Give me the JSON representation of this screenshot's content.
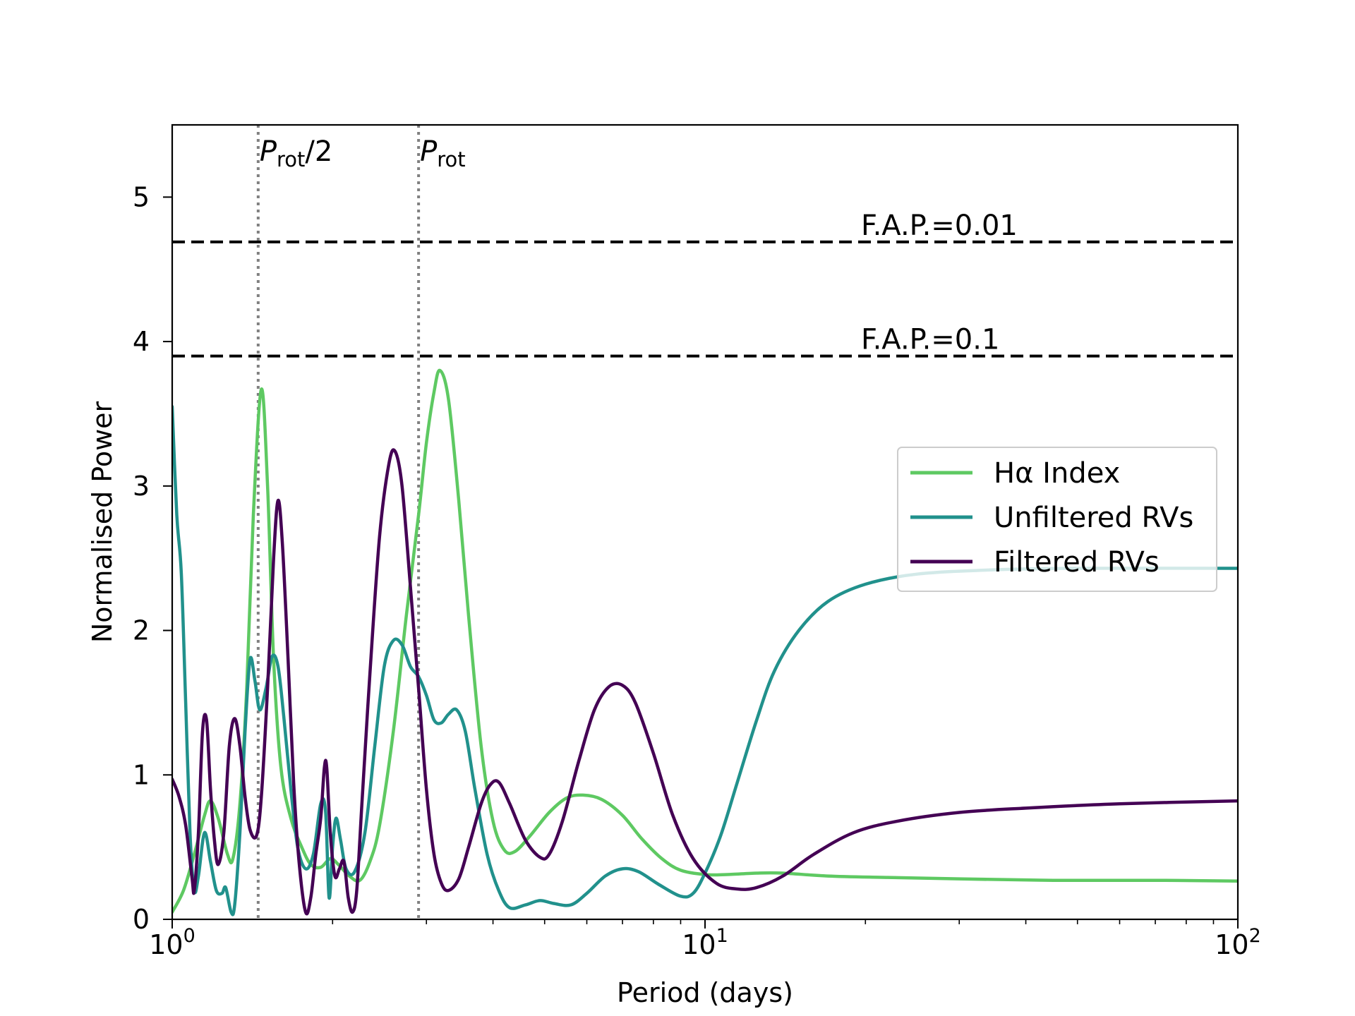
{
  "chart_data": {
    "type": "line",
    "xlabel": "Period (days)",
    "ylabel": "Normalised Power",
    "x_scale": "log",
    "xlim": [
      1,
      100
    ],
    "ylim": [
      0,
      5.5
    ],
    "x_ticks": [
      {
        "value": 1,
        "base": "10",
        "exp": "0"
      },
      {
        "value": 10,
        "base": "10",
        "exp": "1"
      },
      {
        "value": 100,
        "base": "10",
        "exp": "2"
      }
    ],
    "y_ticks": [
      {
        "value": 0,
        "label": "0"
      },
      {
        "value": 1,
        "label": "1"
      },
      {
        "value": 2,
        "label": "2"
      },
      {
        "value": 3,
        "label": "3"
      },
      {
        "value": 4,
        "label": "4"
      },
      {
        "value": 5,
        "label": "5"
      }
    ],
    "grid": false,
    "legend_position": "center-right",
    "fap_lines": [
      {
        "label": "F.A.P.=0.01",
        "y": 4.69
      },
      {
        "label": "F.A.P.=0.1",
        "y": 3.9
      }
    ],
    "vlines": [
      {
        "x": 1.45,
        "label_main": "P",
        "label_sub": "rot",
        "label_suffix": "/2"
      },
      {
        "x": 2.9,
        "label_main": "P",
        "label_sub": "rot",
        "label_suffix": ""
      }
    ],
    "series": [
      {
        "name": "Hα Index",
        "color": "#5ec962",
        "points": [
          [
            1.0,
            0.05
          ],
          [
            1.05,
            0.2
          ],
          [
            1.1,
            0.45
          ],
          [
            1.15,
            0.72
          ],
          [
            1.18,
            0.82
          ],
          [
            1.22,
            0.7
          ],
          [
            1.27,
            0.45
          ],
          [
            1.3,
            0.42
          ],
          [
            1.34,
            0.8
          ],
          [
            1.38,
            1.6
          ],
          [
            1.42,
            2.8
          ],
          [
            1.47,
            3.67
          ],
          [
            1.51,
            3.0
          ],
          [
            1.55,
            1.8
          ],
          [
            1.6,
            1.05
          ],
          [
            1.67,
            0.7
          ],
          [
            1.75,
            0.5
          ],
          [
            1.82,
            0.38
          ],
          [
            1.9,
            0.36
          ],
          [
            1.98,
            0.42
          ],
          [
            2.05,
            0.38
          ],
          [
            2.15,
            0.3
          ],
          [
            2.25,
            0.27
          ],
          [
            2.35,
            0.4
          ],
          [
            2.45,
            0.65
          ],
          [
            2.6,
            1.3
          ],
          [
            2.75,
            2.1
          ],
          [
            2.9,
            2.8
          ],
          [
            3.0,
            3.3
          ],
          [
            3.1,
            3.65
          ],
          [
            3.18,
            3.8
          ],
          [
            3.3,
            3.6
          ],
          [
            3.45,
            2.9
          ],
          [
            3.6,
            2.1
          ],
          [
            3.8,
            1.2
          ],
          [
            4.0,
            0.68
          ],
          [
            4.2,
            0.48
          ],
          [
            4.4,
            0.47
          ],
          [
            4.7,
            0.58
          ],
          [
            5.1,
            0.74
          ],
          [
            5.5,
            0.84
          ],
          [
            5.9,
            0.86
          ],
          [
            6.4,
            0.83
          ],
          [
            7.0,
            0.72
          ],
          [
            7.6,
            0.56
          ],
          [
            8.3,
            0.42
          ],
          [
            9.0,
            0.34
          ],
          [
            10.0,
            0.31
          ],
          [
            11.0,
            0.31
          ],
          [
            12.5,
            0.32
          ],
          [
            14.0,
            0.32
          ],
          [
            17.0,
            0.3
          ],
          [
            22.0,
            0.29
          ],
          [
            30.0,
            0.28
          ],
          [
            45.0,
            0.27
          ],
          [
            70.0,
            0.27
          ],
          [
            100.0,
            0.265
          ]
        ]
      },
      {
        "name": "Unfiltered RVs",
        "color": "#21918c",
        "points": [
          [
            1.0,
            3.55
          ],
          [
            1.02,
            2.8
          ],
          [
            1.04,
            2.4
          ],
          [
            1.06,
            1.5
          ],
          [
            1.08,
            0.6
          ],
          [
            1.1,
            0.2
          ],
          [
            1.12,
            0.3
          ],
          [
            1.15,
            0.6
          ],
          [
            1.18,
            0.4
          ],
          [
            1.21,
            0.2
          ],
          [
            1.24,
            0.18
          ],
          [
            1.26,
            0.22
          ],
          [
            1.29,
            0.05
          ],
          [
            1.31,
            0.1
          ],
          [
            1.34,
            0.6
          ],
          [
            1.37,
            1.3
          ],
          [
            1.4,
            1.8
          ],
          [
            1.43,
            1.65
          ],
          [
            1.46,
            1.45
          ],
          [
            1.5,
            1.6
          ],
          [
            1.54,
            1.82
          ],
          [
            1.58,
            1.75
          ],
          [
            1.62,
            1.4
          ],
          [
            1.67,
            0.9
          ],
          [
            1.72,
            0.5
          ],
          [
            1.78,
            0.35
          ],
          [
            1.84,
            0.45
          ],
          [
            1.9,
            0.8
          ],
          [
            1.94,
            0.75
          ],
          [
            1.97,
            0.15
          ],
          [
            2.0,
            0.5
          ],
          [
            2.03,
            0.7
          ],
          [
            2.07,
            0.55
          ],
          [
            2.12,
            0.35
          ],
          [
            2.2,
            0.33
          ],
          [
            2.3,
            0.6
          ],
          [
            2.4,
            1.2
          ],
          [
            2.5,
            1.75
          ],
          [
            2.6,
            1.93
          ],
          [
            2.7,
            1.9
          ],
          [
            2.8,
            1.75
          ],
          [
            2.9,
            1.68
          ],
          [
            3.0,
            1.55
          ],
          [
            3.1,
            1.38
          ],
          [
            3.2,
            1.36
          ],
          [
            3.3,
            1.42
          ],
          [
            3.42,
            1.45
          ],
          [
            3.55,
            1.3
          ],
          [
            3.7,
            0.9
          ],
          [
            3.9,
            0.45
          ],
          [
            4.1,
            0.2
          ],
          [
            4.3,
            0.08
          ],
          [
            4.6,
            0.1
          ],
          [
            4.9,
            0.13
          ],
          [
            5.2,
            0.11
          ],
          [
            5.6,
            0.1
          ],
          [
            6.0,
            0.18
          ],
          [
            6.5,
            0.3
          ],
          [
            7.0,
            0.35
          ],
          [
            7.5,
            0.33
          ],
          [
            8.2,
            0.24
          ],
          [
            9.0,
            0.16
          ],
          [
            9.5,
            0.18
          ],
          [
            10.0,
            0.32
          ],
          [
            10.7,
            0.58
          ],
          [
            11.5,
            0.95
          ],
          [
            12.5,
            1.38
          ],
          [
            13.5,
            1.72
          ],
          [
            15.0,
            2.0
          ],
          [
            17.0,
            2.2
          ],
          [
            20.0,
            2.32
          ],
          [
            25.0,
            2.39
          ],
          [
            35.0,
            2.42
          ],
          [
            50.0,
            2.43
          ],
          [
            100.0,
            2.43
          ]
        ]
      },
      {
        "name": "Filtered RVs",
        "color": "#440154",
        "points": [
          [
            1.0,
            0.97
          ],
          [
            1.03,
            0.85
          ],
          [
            1.06,
            0.65
          ],
          [
            1.09,
            0.28
          ],
          [
            1.1,
            0.2
          ],
          [
            1.12,
            0.6
          ],
          [
            1.14,
            1.3
          ],
          [
            1.16,
            1.38
          ],
          [
            1.18,
            0.9
          ],
          [
            1.2,
            0.55
          ],
          [
            1.22,
            0.38
          ],
          [
            1.25,
            0.6
          ],
          [
            1.28,
            1.2
          ],
          [
            1.31,
            1.39
          ],
          [
            1.34,
            1.2
          ],
          [
            1.37,
            0.85
          ],
          [
            1.4,
            0.62
          ],
          [
            1.44,
            0.58
          ],
          [
            1.47,
            0.85
          ],
          [
            1.51,
            1.6
          ],
          [
            1.55,
            2.5
          ],
          [
            1.58,
            2.9
          ],
          [
            1.61,
            2.6
          ],
          [
            1.65,
            1.8
          ],
          [
            1.69,
            0.95
          ],
          [
            1.73,
            0.4
          ],
          [
            1.78,
            0.05
          ],
          [
            1.82,
            0.15
          ],
          [
            1.86,
            0.45
          ],
          [
            1.9,
            0.7
          ],
          [
            1.93,
            1.05
          ],
          [
            1.95,
            1.05
          ],
          [
            1.98,
            0.6
          ],
          [
            2.02,
            0.3
          ],
          [
            2.06,
            0.35
          ],
          [
            2.1,
            0.4
          ],
          [
            2.14,
            0.15
          ],
          [
            2.18,
            0.05
          ],
          [
            2.22,
            0.2
          ],
          [
            2.27,
            0.8
          ],
          [
            2.35,
            1.7
          ],
          [
            2.45,
            2.65
          ],
          [
            2.55,
            3.15
          ],
          [
            2.62,
            3.24
          ],
          [
            2.7,
            3.0
          ],
          [
            2.8,
            2.3
          ],
          [
            2.9,
            1.6
          ],
          [
            3.0,
            0.9
          ],
          [
            3.1,
            0.45
          ],
          [
            3.2,
            0.25
          ],
          [
            3.3,
            0.2
          ],
          [
            3.45,
            0.28
          ],
          [
            3.6,
            0.5
          ],
          [
            3.8,
            0.8
          ],
          [
            3.95,
            0.93
          ],
          [
            4.1,
            0.95
          ],
          [
            4.3,
            0.8
          ],
          [
            4.6,
            0.55
          ],
          [
            4.9,
            0.43
          ],
          [
            5.1,
            0.45
          ],
          [
            5.4,
            0.68
          ],
          [
            5.8,
            1.1
          ],
          [
            6.2,
            1.45
          ],
          [
            6.6,
            1.61
          ],
          [
            7.0,
            1.62
          ],
          [
            7.4,
            1.5
          ],
          [
            8.0,
            1.15
          ],
          [
            8.7,
            0.72
          ],
          [
            9.5,
            0.42
          ],
          [
            10.5,
            0.25
          ],
          [
            11.5,
            0.21
          ],
          [
            12.5,
            0.22
          ],
          [
            14.0,
            0.3
          ],
          [
            16.0,
            0.45
          ],
          [
            19.0,
            0.6
          ],
          [
            23.0,
            0.68
          ],
          [
            30.0,
            0.74
          ],
          [
            40.0,
            0.77
          ],
          [
            60.0,
            0.8
          ],
          [
            100.0,
            0.82
          ]
        ]
      }
    ]
  }
}
